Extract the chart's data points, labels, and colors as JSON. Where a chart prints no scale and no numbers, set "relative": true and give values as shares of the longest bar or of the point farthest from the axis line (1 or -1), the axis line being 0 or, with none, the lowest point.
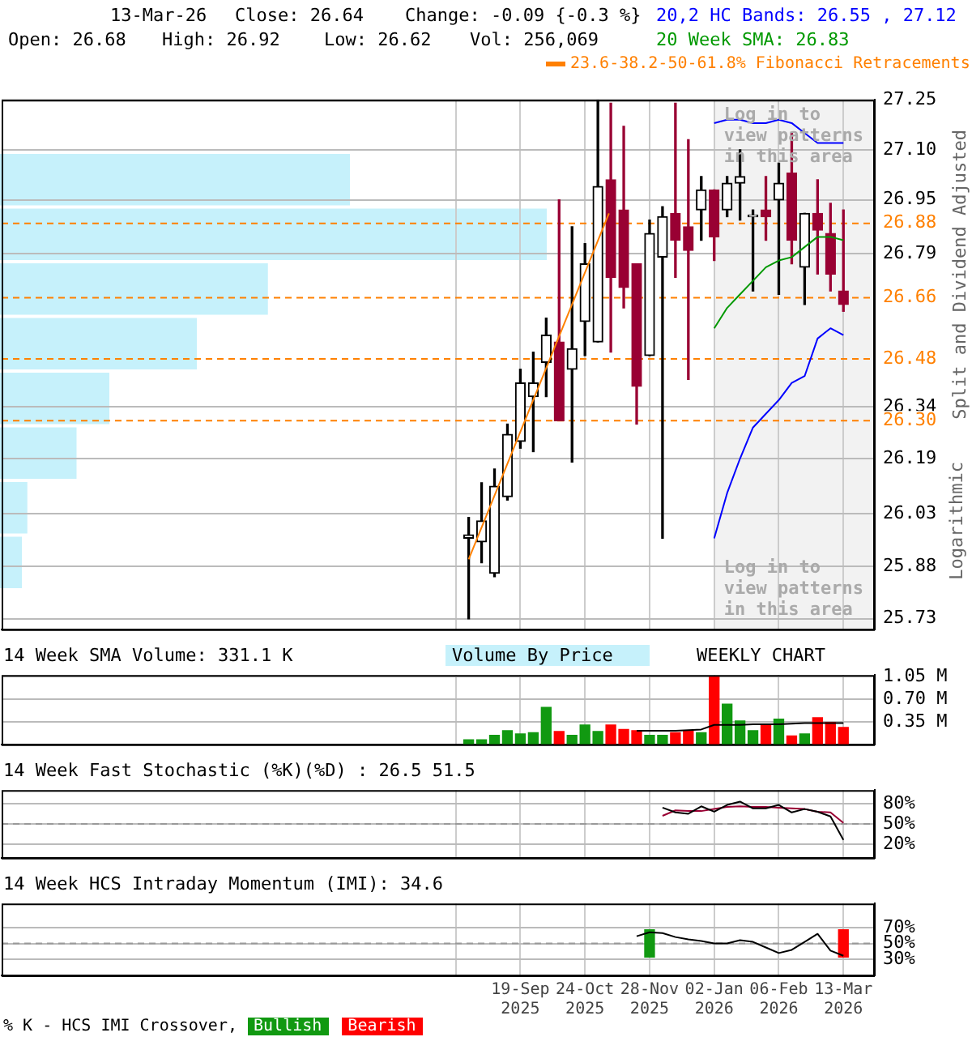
{
  "chart_data": [
    {
      "type": "candlestick",
      "title": "13-Mar-26",
      "ylabel": "Split and Dividend Adjusted",
      "x": [
        "2025-08-22",
        "2025-08-29",
        "2025-09-05",
        "2025-09-12",
        "2025-09-19",
        "2025-09-26",
        "2025-10-03",
        "2025-10-10",
        "2025-10-17",
        "2025-10-24",
        "2025-10-31",
        "2025-11-07",
        "2025-11-14",
        "2025-11-21",
        "2025-11-28",
        "2025-12-05",
        "2025-12-12",
        "2025-12-19",
        "2025-12-26",
        "2026-01-02",
        "2026-01-09",
        "2026-01-16",
        "2026-01-23",
        "2026-01-30",
        "2026-02-06",
        "2026-02-13",
        "2026-02-20",
        "2026-02-27",
        "2026-03-06",
        "2026-03-13"
      ],
      "ohlc": [
        [
          25.96,
          26.02,
          25.73,
          25.97
        ],
        [
          25.95,
          26.12,
          25.89,
          26.01
        ],
        [
          25.86,
          26.16,
          25.85,
          26.11
        ],
        [
          26.08,
          26.29,
          26.07,
          26.26
        ],
        [
          26.24,
          26.45,
          26.22,
          26.41
        ],
        [
          26.37,
          26.5,
          26.21,
          26.41
        ],
        [
          26.47,
          26.6,
          26.37,
          26.55
        ],
        [
          26.53,
          26.95,
          26.3,
          26.3
        ],
        [
          26.45,
          26.87,
          26.18,
          26.51
        ],
        [
          26.59,
          26.82,
          26.49,
          26.76
        ],
        [
          26.53,
          27.25,
          26.53,
          26.99
        ],
        [
          27.01,
          27.24,
          26.5,
          26.72
        ],
        [
          26.92,
          27.17,
          26.63,
          26.69
        ],
        [
          26.76,
          26.76,
          26.29,
          26.4
        ],
        [
          26.49,
          26.89,
          26.49,
          26.85
        ],
        [
          26.78,
          26.93,
          25.96,
          26.9
        ],
        [
          26.91,
          27.24,
          26.72,
          26.83
        ],
        [
          26.87,
          27.13,
          26.42,
          26.8
        ],
        [
          26.92,
          27.02,
          26.83,
          26.98
        ],
        [
          26.98,
          26.98,
          26.77,
          26.84
        ],
        [
          26.92,
          27.02,
          26.9,
          27
        ],
        [
          27,
          27.1,
          26.89,
          27.02
        ],
        [
          26.9,
          26.92,
          26.68,
          26.9
        ],
        [
          26.92,
          27.02,
          26.83,
          26.9
        ],
        [
          26.95,
          27.06,
          26.67,
          27
        ],
        [
          27.03,
          27.15,
          26.76,
          26.83
        ],
        [
          26.75,
          26.91,
          26.64,
          26.91
        ],
        [
          26.91,
          27.01,
          26.73,
          26.86
        ],
        [
          26.85,
          26.94,
          26.68,
          26.73
        ],
        [
          26.68,
          26.92,
          26.62,
          26.64
        ]
      ],
      "colors": [
        "#000000",
        "#000000",
        "#000000",
        "#000000",
        "#000000",
        "#000000",
        "#000000",
        "#990033",
        "#000000",
        "#000000",
        "#000000",
        "#990033",
        "#990033",
        "#990033",
        "#000000",
        "#000000",
        "#990033",
        "#990033",
        "#000000",
        "#990033",
        "#000000",
        "#000000",
        "#000000",
        "#990033",
        "#000000",
        "#990033",
        "#000000",
        "#990033",
        "#990033",
        "#990033"
      ],
      "series": [
        {
          "type": "line",
          "name": "20,2 HC Bands: 26.55 , 27.12",
          "color": "#0000ff",
          "x": [
            "2026-01-02",
            "2026-01-09",
            "2026-01-16",
            "2026-01-23",
            "2026-01-30",
            "2026-02-06",
            "2026-02-13",
            "2026-02-20",
            "2026-02-27",
            "2026-03-06",
            "2026-03-13"
          ],
          "values": [
            27.18,
            27.19,
            27.19,
            27.18,
            27.18,
            27.19,
            27.18,
            27.15,
            27.12,
            27.12,
            27.12
          ]
        },
        {
          "type": "line",
          "color": "#0000ff",
          "x": [
            "2026-01-02",
            "2026-01-09",
            "2026-01-16",
            "2026-01-23",
            "2026-01-30",
            "2026-02-06",
            "2026-02-13",
            "2026-02-20",
            "2026-02-27",
            "2026-03-06",
            "2026-03-13"
          ],
          "values": [
            25.96,
            26.09,
            26.19,
            26.28,
            26.32,
            26.36,
            26.41,
            26.43,
            26.54,
            26.57,
            26.55
          ]
        },
        {
          "type": "line",
          "name": "20 Week SMA: 26.83",
          "color": "#009900",
          "x": [
            "2026-01-02",
            "2026-01-09",
            "2026-01-16",
            "2026-01-23",
            "2026-01-30",
            "2026-02-06",
            "2026-02-13",
            "2026-02-20",
            "2026-02-27",
            "2026-03-06",
            "2026-03-13"
          ],
          "values": [
            26.57,
            26.63,
            26.67,
            26.71,
            26.75,
            26.77,
            26.78,
            26.81,
            26.84,
            26.84,
            26.83
          ]
        },
        {
          "type": "line",
          "name": "23.6-38.2-50-61.8% Fibonacci Retracements",
          "color": "#ff8000",
          "x": [
            "2025-08-22",
            "2025-11-06"
          ],
          "values": [
            25.9,
            26.91
          ]
        }
      ],
      "xlim": [
        "2024-12-12",
        "2026-03-30"
      ],
      "xticks": [
        "2025-08-15",
        "2025-09-19",
        "2025-10-24",
        "2025-11-28",
        "2026-01-02",
        "2026-02-06",
        "2026-03-13"
      ],
      "ylim": [
        25.73,
        27.25
      ],
      "yticks": [
        25.73,
        25.88,
        26.03,
        26.19,
        26.34,
        26.79,
        26.95,
        {
          "value": 27.1,
          "label": "27.10"
        },
        27.25
      ],
      "log": true,
      "grid": true,
      "legend": "top right",
      "tick_labels": "y",
      "ref_lines": [
        {
          "axis": "y",
          "value": 26.88,
          "label": "26.88",
          "color": "#ff8000",
          "line_style": "dashed"
        },
        {
          "axis": "y",
          "value": 26.66,
          "label": "26.66",
          "color": "#ff8000",
          "line_style": "dashed"
        },
        {
          "axis": "y",
          "value": 26.48,
          "label": "26.48",
          "color": "#ff8000",
          "line_style": "dashed"
        },
        {
          "axis": "y",
          "value": 26.3,
          "label": "26.30",
          "color": "#ff8000",
          "line_style": "dashed"
        }
      ],
      "bands": [
        {
          "axis": "x",
          "from": "2026-01-02",
          "to": "2026-03-30",
          "color": "#f2f2f2"
        }
      ],
      "annotations": [
        "Close: 26.64",
        "Change: -0.09 {-0.3 %}",
        "Open: 26.68",
        "High: 26.92",
        "Low: 26.62",
        "Vol: 256,069",
        "Logarithmic",
        {
          "text": "Log in to view patterns in this area",
          "x": "2026-01-02",
          "y": 27.23
        },
        {
          "text": "Log in to view patterns in this area",
          "x": "2026-01-02",
          "y": 25.9
        }
      ]
    },
    {
      "type": "bar",
      "title": "Volume By Price",
      "orientation": "horizontal",
      "relative": true,
      "color": "#c6f1fb",
      "categories": [
        null,
        null,
        null,
        null,
        null,
        null,
        null,
        null
      ],
      "values": [
        0.64,
        1,
        0.49,
        0.36,
        0.2,
        0.14,
        0.05,
        0.04
      ]
    },
    {
      "type": "bar",
      "title": "14 Week SMA Volume: 331.1 K",
      "x": [
        "2025-08-22",
        "2025-08-29",
        "2025-09-05",
        "2025-09-12",
        "2025-09-19",
        "2025-09-26",
        "2025-10-03",
        "2025-10-10",
        "2025-10-17",
        "2025-10-24",
        "2025-10-31",
        "2025-11-07",
        "2025-11-14",
        "2025-11-21",
        "2025-11-28",
        "2025-12-05",
        "2025-12-12",
        "2025-12-19",
        "2025-12-26",
        "2026-01-02",
        "2026-01-09",
        "2026-01-16",
        "2026-01-23",
        "2026-01-30",
        "2026-02-06",
        "2026-02-13",
        "2026-02-20",
        "2026-02-27",
        "2026-03-06",
        "2026-03-13"
      ],
      "values": [
        0.07,
        0.07,
        0.14,
        0.21,
        0.16,
        0.18,
        0.57,
        0.2,
        0.14,
        0.3,
        0.2,
        0.3,
        0.23,
        0.21,
        0.14,
        0.14,
        0.18,
        0.21,
        0.18,
        1.05,
        0.62,
        0.36,
        0.21,
        0.3,
        0.39,
        0.13,
        0.16,
        0.41,
        0.34,
        0.26
      ],
      "colors": [
        "#119911",
        "#119911",
        "#119911",
        "#119911",
        "#119911",
        "#119911",
        "#119911",
        "#ff0000",
        "#119911",
        "#119911",
        "#119911",
        "#ff0000",
        "#ff0000",
        "#ff0000",
        "#119911",
        "#119911",
        "#ff0000",
        "#ff0000",
        "#119911",
        "#ff0000",
        "#119911",
        "#119911",
        "#119911",
        "#ff0000",
        "#119911",
        "#ff0000",
        "#119911",
        "#ff0000",
        "#ff0000",
        "#ff0000"
      ],
      "series": [
        {
          "type": "line",
          "color": "#000000",
          "x": [
            "2025-11-21",
            "2025-11-28",
            "2025-12-05",
            "2025-12-12",
            "2025-12-19",
            "2025-12-26",
            "2026-01-02",
            "2026-01-09",
            "2026-01-16",
            "2026-01-23",
            "2026-01-30",
            "2026-02-06",
            "2026-02-13",
            "2026-02-20",
            "2026-02-27",
            "2026-03-06",
            "2026-03-13"
          ],
          "values": [
            0.21,
            0.21,
            0.21,
            0.21,
            0.22,
            0.23,
            0.3,
            0.3,
            0.3,
            0.31,
            0.31,
            0.31,
            0.32,
            0.33,
            0.33,
            0.33,
            0.33
          ]
        }
      ],
      "xlim": [
        "2024-12-12",
        "2026-03-30"
      ],
      "xticks": [
        "2025-08-15",
        "2025-09-19",
        "2025-10-24",
        "2025-11-28",
        "2026-01-02",
        "2026-02-06",
        "2026-03-13"
      ],
      "ylim": [
        0,
        1.07
      ],
      "yticks": [
        {
          "value": 0.35,
          "label": "0.35 M"
        },
        {
          "value": 0.7,
          "label": "0.70 M"
        },
        {
          "value": 1.05,
          "label": "1.05 M"
        }
      ],
      "grid": true,
      "tick_labels": "y",
      "annotations": [
        "WEEKLY CHART"
      ]
    },
    {
      "type": "line",
      "title": "14 Week Fast Stochastic (%K)(%D) : 26.5  51.5",
      "series": [
        {
          "color": "#000000",
          "x": [
            "2025-12-05",
            "2025-12-12",
            "2025-12-19",
            "2025-12-26",
            "2026-01-02",
            "2026-01-09",
            "2026-01-16",
            "2026-01-23",
            "2026-01-30",
            "2026-02-06",
            "2026-02-13",
            "2026-02-20",
            "2026-02-27",
            "2026-03-06",
            "2026-03-13"
          ],
          "values": [
            74,
            67,
            65,
            76,
            68,
            78,
            83,
            73,
            73,
            78,
            67,
            72,
            68,
            61,
            26.5
          ]
        },
        {
          "color": "#990033",
          "x": [
            "2025-12-05",
            "2025-12-12",
            "2025-12-19",
            "2025-12-26",
            "2026-01-02",
            "2026-01-09",
            "2026-01-16",
            "2026-01-23",
            "2026-01-30",
            "2026-02-06",
            "2026-02-13",
            "2026-02-20",
            "2026-02-27",
            "2026-03-06",
            "2026-03-13"
          ],
          "values": [
            62,
            70,
            69,
            69,
            72,
            75,
            76,
            75,
            75,
            74,
            73,
            72,
            68,
            67,
            51.5
          ]
        }
      ],
      "xlim": [
        "2024-12-12",
        "2026-03-30"
      ],
      "xticks": [
        "2025-08-15",
        "2025-09-19",
        "2025-10-24",
        "2025-11-28",
        "2026-01-02",
        "2026-02-06",
        "2026-03-13"
      ],
      "ylim": [
        0,
        100
      ],
      "yticks": [
        {
          "value": 20,
          "label": "20%"
        },
        {
          "value": 50,
          "label": "50%"
        },
        {
          "value": 80,
          "label": "80%"
        }
      ],
      "grid": true,
      "tick_labels": "y",
      "ref_lines": [
        {
          "axis": "y",
          "value": 50,
          "color": "#999999",
          "line_style": "dashed"
        }
      ]
    },
    {
      "type": "line",
      "title": "14 Week HCS Intraday Momentum (IMI): 34.6",
      "legend_title": "% K - HCS IMI Crossover,",
      "legend": "bottom",
      "series": [
        {
          "color": "#000000",
          "x": [
            "2025-11-21",
            "2025-11-28",
            "2025-12-05",
            "2025-12-12",
            "2025-12-19",
            "2025-12-26",
            "2026-01-02",
            "2026-01-09",
            "2026-01-16",
            "2026-01-23",
            "2026-01-30",
            "2026-02-06",
            "2026-02-13",
            "2026-02-20",
            "2026-02-27",
            "2026-03-06",
            "2026-03-13"
          ],
          "values": [
            59,
            64,
            63,
            58,
            55,
            53,
            50,
            50,
            54,
            52,
            45,
            38,
            42,
            52,
            62,
            41,
            34.6
          ]
        },
        {
          "type": "bar",
          "name": "Bullish",
          "color": "#119911",
          "x": [
            "2025-11-28"
          ],
          "values": [
            34
          ],
          "base": [
            33
          ]
        },
        {
          "type": "bar",
          "name": "Bearish",
          "color": "#ff0000",
          "x": [
            "2026-03-13"
          ],
          "values": [
            34
          ],
          "base": [
            33
          ]
        }
      ],
      "xlim": [
        "2024-12-12",
        "2026-03-30"
      ],
      "xticks": [
        {
          "value": "2025-08-15",
          "label": null
        },
        {
          "value": "2025-09-19",
          "label": "19-Sep 2025"
        },
        {
          "value": "2025-10-24",
          "label": "24-Oct 2025"
        },
        {
          "value": "2025-11-28",
          "label": "28-Nov 2025"
        },
        {
          "value": "2026-01-02",
          "label": "02-Jan 2026"
        },
        {
          "value": "2026-02-06",
          "label": "06-Feb 2026"
        },
        {
          "value": "2026-03-13",
          "label": "13-Mar 2026"
        }
      ],
      "ylim": [
        10,
        100
      ],
      "yticks": [
        {
          "value": 30,
          "label": "30%"
        },
        {
          "value": 50,
          "label": "50%"
        },
        {
          "value": 70,
          "label": "70%"
        }
      ],
      "grid": true,
      "ref_lines": [
        {
          "axis": "y",
          "value": 50,
          "color": "#999999",
          "line_style": "dashed"
        }
      ]
    }
  ]
}
